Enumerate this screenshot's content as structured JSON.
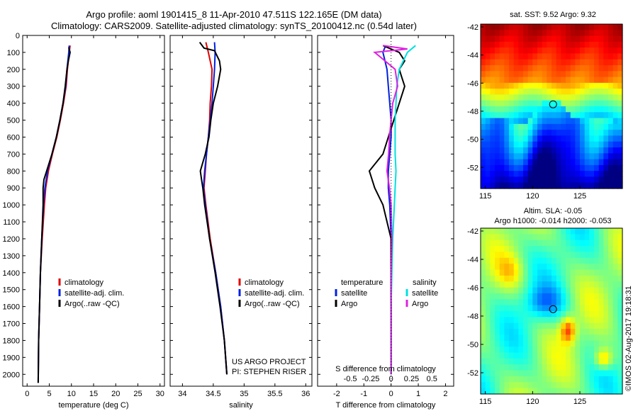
{
  "header": {
    "line1": "Argo profile: aoml 1901415_8 11-Apr-2010 47.511S 122.165E (DM data)",
    "line2": "Climatology: CARS2009. Satellite-adjusted climatology: synTS_20100412.nc (0.54d later)"
  },
  "colors": {
    "climatology": "#e00000",
    "satellite_adj": "#0020e0",
    "argo": "#000000",
    "sat_salinity": "#00e0e0",
    "argo_salinity": "#e020e0"
  },
  "credits": {
    "project": "US ARGO PROJECT",
    "pi": "PI: STEPHEN RISER",
    "imos": "©IMOS 02-Aug-2017 19:18:31"
  },
  "chart_data": [
    {
      "type": "line",
      "panel": "temperature",
      "xlabel": "temperature (deg C)",
      "xlim": [
        -1,
        31
      ],
      "xticks": [
        "0",
        "5",
        "10",
        "15",
        "20",
        "25",
        "30"
      ],
      "ylim": [
        2070,
        0
      ],
      "yticks": [
        "0",
        "100",
        "200",
        "300",
        "400",
        "500",
        "600",
        "700",
        "800",
        "900",
        "1000",
        "1100",
        "1200",
        "1300",
        "1400",
        "1500",
        "1600",
        "1700",
        "1800",
        "1900",
        "2000"
      ],
      "legend": [
        "climatology",
        "satellite-adj. clim.",
        "Argo(..raw -QC)"
      ],
      "series": [
        {
          "name": "climatology",
          "depth": [
            60,
            100,
            200,
            300,
            400,
            500,
            600,
            700,
            800,
            900,
            1000,
            1200,
            1400,
            1600,
            1800,
            2050
          ],
          "values": [
            9.7,
            9.5,
            9.1,
            8.8,
            8.2,
            7.5,
            6.7,
            5.7,
            4.8,
            4.2,
            3.9,
            3.4,
            3.0,
            2.8,
            2.6,
            2.5
          ]
        },
        {
          "name": "satellite-adj. clim.",
          "depth": [
            60,
            100,
            200,
            300,
            400,
            500,
            600,
            700,
            800,
            900,
            1000,
            1200,
            1400,
            1600,
            1800,
            2050
          ],
          "values": [
            9.5,
            9.4,
            9.0,
            8.7,
            8.1,
            7.4,
            6.6,
            5.6,
            4.6,
            4.0,
            3.7,
            3.3,
            3.0,
            2.8,
            2.6,
            2.5
          ]
        },
        {
          "name": "Argo(..raw -QC)",
          "depth": [
            70,
            100,
            150,
            200,
            300,
            400,
            500,
            600,
            700,
            800,
            850,
            900,
            1000,
            1200,
            1400,
            1600,
            1800,
            2050
          ],
          "values": [
            9.4,
            9.7,
            9.3,
            9.0,
            8.6,
            8.1,
            7.4,
            6.6,
            5.6,
            4.4,
            3.8,
            3.6,
            3.6,
            3.3,
            3.0,
            2.8,
            2.6,
            2.5
          ]
        }
      ]
    },
    {
      "type": "line",
      "panel": "salinity",
      "xlabel": "salinity",
      "xlim": [
        33.8,
        36.1
      ],
      "xticks": [
        "34",
        "34.5",
        "35",
        "35.5",
        "36"
      ],
      "ylim": [
        2070,
        0
      ],
      "legend": [
        "climatology",
        "satellite-adj. clim.",
        "Argo(..raw -QC)"
      ],
      "series": [
        {
          "name": "climatology",
          "depth": [
            40,
            100,
            200,
            300,
            400,
            500,
            600,
            700,
            800,
            900,
            1000,
            1200,
            1400,
            1600,
            1800,
            2000
          ],
          "values": [
            34.38,
            34.42,
            34.48,
            34.47,
            34.45,
            34.44,
            34.42,
            34.39,
            34.37,
            34.35,
            34.38,
            34.45,
            34.54,
            34.62,
            34.68,
            34.72
          ]
        },
        {
          "name": "satellite-adj. clim.",
          "depth": [
            40,
            100,
            200,
            300,
            400,
            500,
            600,
            700,
            800,
            900,
            1000,
            1200,
            1400,
            1600,
            1800,
            2000
          ],
          "values": [
            34.52,
            34.53,
            34.52,
            34.5,
            34.48,
            34.45,
            34.42,
            34.39,
            34.36,
            34.34,
            34.37,
            34.44,
            34.54,
            34.62,
            34.68,
            34.72
          ]
        },
        {
          "name": "Argo(..raw -QC)",
          "depth": [
            40,
            75,
            90,
            150,
            200,
            300,
            400,
            500,
            600,
            700,
            750,
            800,
            850,
            900,
            1000,
            1200,
            1400,
            1600,
            1800,
            2000
          ],
          "values": [
            34.28,
            34.35,
            34.52,
            34.6,
            34.62,
            34.57,
            34.5,
            34.46,
            34.43,
            34.37,
            34.33,
            34.29,
            34.31,
            34.33,
            34.36,
            34.44,
            34.53,
            34.61,
            34.68,
            34.72
          ]
        }
      ]
    },
    {
      "type": "line",
      "panel": "difference",
      "xlabel": "T difference from climatology",
      "xlabel2": "S difference from climatology",
      "xlim": [
        -2.7,
        2.3
      ],
      "xticks": [
        "-2",
        "-1",
        "0",
        "1",
        "2"
      ],
      "xticks2": [
        "-0.5",
        "-0.25",
        "0",
        "0.25",
        "0.5"
      ],
      "ylim": [
        2070,
        0
      ],
      "legend_header": [
        "temperature",
        "salinity"
      ],
      "legend": [
        "satellite",
        "Argo",
        "satellite",
        "Argo"
      ],
      "series": [
        {
          "name": "satellite",
          "depth": [
            60,
            100,
            200,
            300,
            400,
            500,
            600,
            700,
            800,
            900,
            1000,
            1200,
            1400,
            1600,
            1800,
            2000
          ],
          "values": [
            -0.2,
            -0.3,
            -0.15,
            -0.1,
            -0.05,
            0,
            0,
            -0.05,
            -0.1,
            -0.1,
            -0.05,
            0,
            0,
            0,
            0,
            0
          ]
        },
        {
          "name": "Argo",
          "depth": [
            60,
            100,
            150,
            200,
            250,
            300,
            400,
            500,
            600,
            700,
            800,
            900,
            1000,
            1200,
            1400,
            1600,
            1800,
            2000
          ],
          "values": [
            -0.3,
            0.3,
            0.5,
            0.3,
            0.4,
            0.5,
            0.3,
            0.1,
            -0.1,
            -0.3,
            -0.8,
            -0.6,
            -0.3,
            0,
            0,
            0,
            0,
            0
          ]
        },
        {
          "name": "satellite",
          "depth": [
            60,
            100,
            200,
            300,
            400,
            500,
            600,
            700,
            800,
            900,
            1000,
            1200,
            1400,
            1600,
            1800,
            2000
          ],
          "values": [
            0.3,
            0.2,
            0.1,
            0.07,
            0.06,
            0.05,
            0.05,
            0.05,
            0.06,
            0.05,
            0.04,
            0.02,
            0.01,
            0,
            0,
            0
          ]
        },
        {
          "name": "Argo",
          "depth": [
            60,
            80,
            100,
            200,
            300,
            400,
            500,
            600,
            700,
            800,
            900,
            1000,
            1200,
            1400,
            1600,
            1800,
            2000
          ],
          "values": [
            -0.1,
            0.2,
            -0.2,
            0.05,
            0.08,
            0.02,
            0,
            -0.02,
            -0.03,
            -0.05,
            -0.02,
            0,
            0.01,
            0,
            0,
            0,
            0
          ]
        }
      ]
    },
    {
      "type": "heatmap",
      "panel": "sst-map",
      "title": "sat. SST: 9.52 Argo: 9.32",
      "xticks": [
        "115",
        "120",
        "125"
      ],
      "yticks": [
        "-42",
        "-44",
        "-46",
        "-48",
        "-50",
        "-52"
      ],
      "xlim": [
        114.5,
        129.5
      ],
      "ylim": [
        -53.5,
        -41.8
      ],
      "marker": [
        122.165,
        -47.511
      ]
    },
    {
      "type": "heatmap",
      "panel": "sla-map",
      "title": "Altim. SLA: -0.05",
      "subtitle": "Argo h1000: -0.014 h2000: -0.053",
      "xticks": [
        "115",
        "120",
        "125"
      ],
      "yticks": [
        "-42",
        "-44",
        "-46",
        "-48",
        "-50",
        "-52"
      ],
      "xlim": [
        114.5,
        129.5
      ],
      "ylim": [
        -53.5,
        -41.8
      ],
      "marker": [
        122.165,
        -47.511
      ]
    }
  ]
}
